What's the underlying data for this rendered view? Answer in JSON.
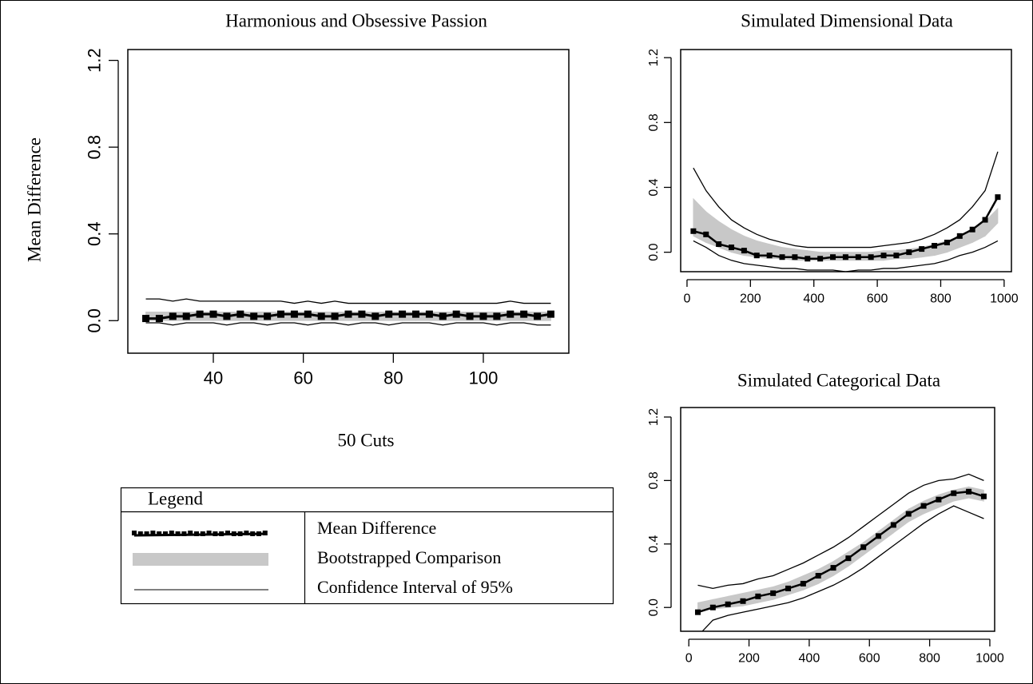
{
  "chart_data": [
    {
      "type": "line",
      "title": "Harmonious and Obsessive Passion",
      "x_label": "50 Cuts",
      "y_label": "Mean Difference",
      "xlim": [
        21,
        119
      ],
      "ylim": [
        -0.15,
        1.25
      ],
      "xticks": [
        40,
        60,
        80,
        100
      ],
      "yticks": [
        {
          "value": 0,
          "label": "0.0"
        },
        0.4,
        0.8,
        1.2
      ],
      "colors": {
        "mean": "#000000",
        "band": "#c8c8c8",
        "ci": "#000000"
      },
      "x": [
        25,
        28,
        31,
        34,
        37,
        40,
        43,
        46,
        49,
        52,
        55,
        58,
        61,
        64,
        67,
        70,
        73,
        76,
        79,
        82,
        85,
        88,
        91,
        94,
        97,
        100,
        103,
        106,
        109,
        112,
        115
      ],
      "mean": [
        0.01,
        0.01,
        0.02,
        0.02,
        0.03,
        0.03,
        0.02,
        0.03,
        0.02,
        0.02,
        0.03,
        0.03,
        0.03,
        0.02,
        0.02,
        0.03,
        0.03,
        0.02,
        0.03,
        0.03,
        0.03,
        0.03,
        0.02,
        0.03,
        0.02,
        0.02,
        0.02,
        0.03,
        0.03,
        0.02,
        0.03
      ],
      "band_low": [
        0,
        0,
        0,
        0,
        0,
        0,
        0,
        0,
        0,
        0,
        0,
        0,
        0,
        0,
        0,
        0,
        0,
        0,
        0,
        0,
        0,
        0,
        0,
        0,
        0,
        0,
        0,
        0,
        0,
        0,
        0
      ],
      "band_high": [
        0.04,
        0.04,
        0.04,
        0.04,
        0.04,
        0.04,
        0.04,
        0.04,
        0.04,
        0.04,
        0.04,
        0.04,
        0.04,
        0.04,
        0.04,
        0.04,
        0.04,
        0.04,
        0.04,
        0.04,
        0.04,
        0.04,
        0.04,
        0.04,
        0.04,
        0.04,
        0.04,
        0.04,
        0.04,
        0.04,
        0.04
      ],
      "ci_low": [
        -0.01,
        -0.01,
        -0.02,
        -0.01,
        -0.01,
        -0.01,
        -0.02,
        -0.01,
        -0.01,
        -0.02,
        -0.01,
        -0.01,
        -0.02,
        -0.01,
        -0.01,
        -0.02,
        -0.01,
        -0.01,
        -0.02,
        -0.01,
        -0.01,
        -0.01,
        -0.02,
        -0.01,
        -0.01,
        -0.01,
        -0.02,
        -0.01,
        -0.01,
        -0.02,
        -0.02
      ],
      "ci_high": [
        0.1,
        0.1,
        0.09,
        0.1,
        0.09,
        0.09,
        0.09,
        0.09,
        0.09,
        0.09,
        0.09,
        0.08,
        0.09,
        0.08,
        0.09,
        0.08,
        0.08,
        0.08,
        0.08,
        0.08,
        0.08,
        0.08,
        0.08,
        0.08,
        0.08,
        0.08,
        0.08,
        0.09,
        0.08,
        0.08,
        0.08
      ]
    },
    {
      "type": "line",
      "title": "Simulated Dimensional Data",
      "xlim": [
        -20,
        1023
      ],
      "ylim": [
        -0.12,
        1.25
      ],
      "xticks": [
        0,
        200,
        400,
        600,
        800,
        1000
      ],
      "yticks": [
        {
          "value": 0,
          "label": "0.0"
        },
        0.4,
        0.8,
        1.2
      ],
      "colors": {
        "mean": "#000000",
        "band": "#c8c8c8",
        "ci": "#000000"
      },
      "x": [
        20,
        60,
        100,
        140,
        180,
        220,
        260,
        300,
        340,
        380,
        420,
        460,
        500,
        540,
        580,
        620,
        660,
        700,
        740,
        780,
        820,
        860,
        900,
        940,
        980
      ],
      "mean": [
        0.13,
        0.11,
        0.05,
        0.03,
        0.01,
        -0.02,
        -0.02,
        -0.03,
        -0.03,
        -0.04,
        -0.04,
        -0.03,
        -0.03,
        -0.03,
        -0.03,
        -0.02,
        -0.02,
        0,
        0.02,
        0.04,
        0.06,
        0.1,
        0.14,
        0.2,
        0.34
      ],
      "band_low": [
        0.1,
        0.06,
        0.03,
        0,
        -0.02,
        -0.03,
        -0.04,
        -0.04,
        -0.05,
        -0.05,
        -0.05,
        -0.05,
        -0.05,
        -0.05,
        -0.05,
        -0.05,
        -0.04,
        -0.04,
        -0.03,
        -0.02,
        0,
        0.03,
        0.06,
        0.1,
        0.18
      ],
      "band_high": [
        0.33,
        0.25,
        0.19,
        0.14,
        0.1,
        0.07,
        0.05,
        0.03,
        0.02,
        0.01,
        0,
        0,
        0,
        0,
        0,
        0.01,
        0.01,
        0.02,
        0.03,
        0.05,
        0.07,
        0.1,
        0.14,
        0.19,
        0.27
      ],
      "ci_low": [
        0.07,
        0.03,
        -0.02,
        -0.05,
        -0.07,
        -0.08,
        -0.09,
        -0.1,
        -0.1,
        -0.11,
        -0.11,
        -0.11,
        -0.12,
        -0.11,
        -0.11,
        -0.1,
        -0.1,
        -0.09,
        -0.08,
        -0.07,
        -0.05,
        -0.02,
        0,
        0.03,
        0.07
      ],
      "ci_high": [
        0.52,
        0.38,
        0.28,
        0.2,
        0.15,
        0.11,
        0.08,
        0.06,
        0.04,
        0.03,
        0.03,
        0.03,
        0.03,
        0.03,
        0.03,
        0.04,
        0.05,
        0.06,
        0.08,
        0.11,
        0.15,
        0.2,
        0.28,
        0.38,
        0.62
      ]
    },
    {
      "type": "line",
      "title": "Simulated Categorical Data",
      "xlim": [
        -27,
        1016
      ],
      "ylim": [
        -0.15,
        1.26
      ],
      "xticks": [
        0,
        200,
        400,
        600,
        800,
        1000
      ],
      "yticks": [
        {
          "value": 0,
          "label": "0.0"
        },
        0.4,
        0.8,
        1.2
      ],
      "colors": {
        "mean": "#000000",
        "band": "#c8c8c8",
        "ci": "#000000"
      },
      "x": [
        30,
        80,
        130,
        180,
        230,
        280,
        330,
        380,
        430,
        480,
        530,
        580,
        630,
        680,
        730,
        780,
        830,
        880,
        930,
        980
      ],
      "mean": [
        -0.03,
        0,
        0.02,
        0.04,
        0.07,
        0.09,
        0.12,
        0.15,
        0.2,
        0.25,
        0.31,
        0.38,
        0.45,
        0.52,
        0.59,
        0.64,
        0.68,
        0.72,
        0.73,
        0.7
      ],
      "band_low": [
        -0.02,
        -0.01,
        0,
        0.01,
        0.03,
        0.05,
        0.08,
        0.11,
        0.15,
        0.2,
        0.26,
        0.33,
        0.4,
        0.47,
        0.54,
        0.59,
        0.63,
        0.67,
        0.69,
        0.67
      ],
      "band_high": [
        0.03,
        0.05,
        0.07,
        0.09,
        0.11,
        0.13,
        0.16,
        0.2,
        0.24,
        0.29,
        0.35,
        0.41,
        0.48,
        0.55,
        0.62,
        0.67,
        0.71,
        0.74,
        0.76,
        0.74
      ],
      "ci_low": [
        -0.18,
        -0.08,
        -0.05,
        -0.03,
        -0.01,
        0.01,
        0.03,
        0.06,
        0.1,
        0.14,
        0.19,
        0.25,
        0.32,
        0.39,
        0.46,
        0.53,
        0.59,
        0.64,
        0.6,
        0.56
      ],
      "ci_high": [
        0.14,
        0.12,
        0.14,
        0.15,
        0.18,
        0.2,
        0.24,
        0.28,
        0.33,
        0.38,
        0.44,
        0.51,
        0.58,
        0.65,
        0.72,
        0.77,
        0.8,
        0.81,
        0.84,
        0.8
      ]
    }
  ],
  "legend": {
    "title": "Legend",
    "items": [
      "Mean Difference",
      "Bootstrapped Comparison",
      "Confidence Interval of 95%"
    ]
  }
}
